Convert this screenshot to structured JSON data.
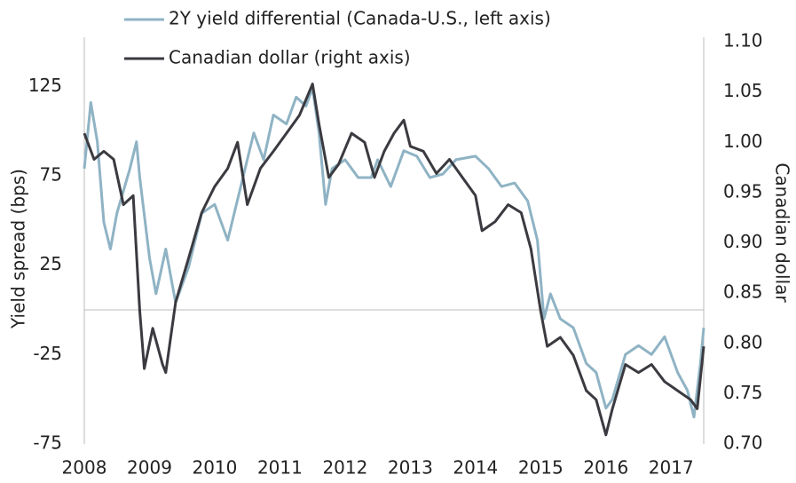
{
  "chart_data": {
    "type": "line",
    "ylabel": "Yield spread (bps)",
    "y2label": "Canadian dollar",
    "xlim": [
      2008,
      2017.5
    ],
    "xticks": [
      2008,
      2009,
      2010,
      2011,
      2012,
      2013,
      2014,
      2015,
      2016,
      2017
    ],
    "ylim": [
      -75,
      150
    ],
    "yticks": [
      -75,
      -25,
      25,
      75,
      125
    ],
    "y2lim": [
      0.7,
      1.1
    ],
    "y2ticks": [
      {
        "value": 0.7,
        "label": "0.70"
      },
      {
        "value": 0.75,
        "label": "0.75"
      },
      {
        "value": 0.8,
        "label": "0.80"
      },
      {
        "value": 0.85,
        "label": "0.85"
      },
      {
        "value": 0.9,
        "label": "0.90"
      },
      {
        "value": 0.95,
        "label": "0.95"
      },
      {
        "value": 1.0,
        "label": "1.00"
      },
      {
        "value": 1.05,
        "label": "1.05"
      },
      {
        "value": 1.1,
        "label": "1.10"
      }
    ],
    "zero_line": true,
    "series": [
      {
        "name": "2Y yield differential (Canada-U.S., left axis)",
        "color": "#8fb3c4",
        "x": [
          2008.0,
          2008.1,
          2008.2,
          2008.3,
          2008.4,
          2008.5,
          2008.7,
          2008.8,
          2008.85,
          2009.0,
          2009.1,
          2009.25,
          2009.4,
          2009.6,
          2009.8,
          2010.0,
          2010.2,
          2010.4,
          2010.6,
          2010.75,
          2010.9,
          2011.1,
          2011.25,
          2011.4,
          2011.5,
          2011.6,
          2011.7,
          2011.8,
          2012.0,
          2012.2,
          2012.4,
          2012.5,
          2012.7,
          2012.9,
          2013.1,
          2013.3,
          2013.5,
          2013.7,
          2014.0,
          2014.2,
          2014.4,
          2014.6,
          2014.8,
          2014.95,
          2015.05,
          2015.15,
          2015.3,
          2015.5,
          2015.7,
          2015.85,
          2016.0,
          2016.1,
          2016.3,
          2016.5,
          2016.7,
          2016.9,
          2017.1,
          2017.25,
          2017.35,
          2017.45,
          2017.5
        ],
        "values": [
          79,
          116,
          94,
          49,
          34,
          54,
          79,
          94,
          74,
          29,
          9,
          34,
          4,
          24,
          54,
          59,
          39,
          69,
          99,
          84,
          109,
          104,
          119,
          114,
          124,
          99,
          59,
          79,
          84,
          74,
          74,
          84,
          69,
          89,
          86,
          74,
          76,
          84,
          86,
          79,
          69,
          71,
          61,
          39,
          -5,
          9,
          -5,
          -10,
          -30,
          -35,
          -55,
          -50,
          -25,
          -20,
          -25,
          -15,
          -35,
          -45,
          -60,
          -30,
          -10
        ]
      },
      {
        "name": "Canadian dollar (right axis)",
        "color": "#3a3a40",
        "axis": "y2",
        "x": [
          2008.0,
          2008.15,
          2008.3,
          2008.45,
          2008.6,
          2008.75,
          2008.85,
          2008.92,
          2009.05,
          2009.2,
          2009.25,
          2009.4,
          2009.6,
          2009.8,
          2010.0,
          2010.2,
          2010.35,
          2010.5,
          2010.7,
          2010.9,
          2011.1,
          2011.3,
          2011.5,
          2011.6,
          2011.75,
          2011.9,
          2012.1,
          2012.3,
          2012.45,
          2012.6,
          2012.75,
          2012.9,
          2013.0,
          2013.2,
          2013.4,
          2013.6,
          2013.8,
          2014.0,
          2014.1,
          2014.3,
          2014.5,
          2014.7,
          2014.85,
          2015.0,
          2015.1,
          2015.3,
          2015.5,
          2015.7,
          2015.85,
          2016.0,
          2016.1,
          2016.3,
          2016.5,
          2016.7,
          2016.9,
          2017.1,
          2017.3,
          2017.4,
          2017.5
        ],
        "values": [
          1.009,
          0.983,
          0.991,
          0.983,
          0.938,
          0.947,
          0.832,
          0.775,
          0.815,
          0.779,
          0.771,
          0.841,
          0.885,
          0.93,
          0.956,
          0.974,
          1.0,
          0.938,
          0.974,
          0.991,
          1.009,
          1.027,
          1.058,
          1.018,
          0.965,
          0.978,
          1.009,
          1.0,
          0.965,
          0.991,
          1.009,
          1.022,
          0.996,
          0.991,
          0.969,
          0.983,
          0.965,
          0.947,
          0.912,
          0.921,
          0.938,
          0.93,
          0.894,
          0.832,
          0.797,
          0.806,
          0.788,
          0.753,
          0.744,
          0.709,
          0.735,
          0.779,
          0.771,
          0.779,
          0.762,
          0.753,
          0.744,
          0.735,
          0.797
        ]
      }
    ]
  }
}
